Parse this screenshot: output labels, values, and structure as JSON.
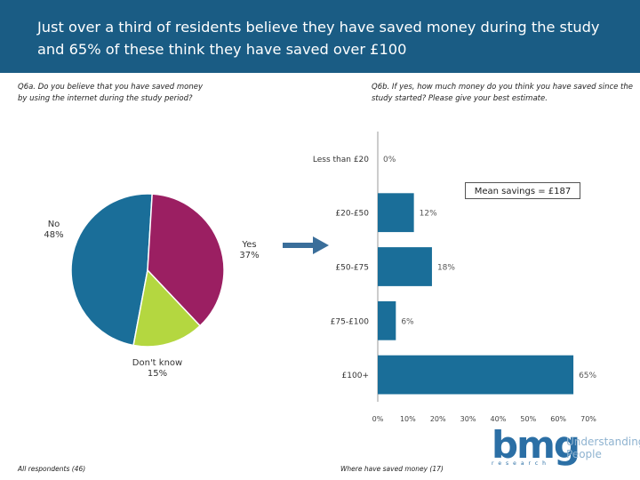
{
  "header": {
    "title": "Just over a third of residents believe they have saved money during the study and 65% of these think they have saved over £100"
  },
  "left": {
    "question": "Q6a. Do you believe that you have saved money by using the internet during the study period?",
    "base": "All respondents (46)"
  },
  "right": {
    "question": "Q6b. If yes, how much money do you think you have saved since the study started? Please give your best estimate.",
    "base": "Where have saved money (17)",
    "mean_note": "Mean savings = £187"
  },
  "colors": {
    "header": "#1a5c84",
    "no": "#1a6e99",
    "yes": "#9b1f62",
    "dont_know": "#b4d740",
    "bar": "#1a6e99"
  },
  "logo": {
    "brand": "bmg",
    "tagline_1": "Understanding",
    "tagline_2": "People",
    "sub": "research"
  },
  "chart_data": [
    {
      "type": "pie",
      "categories": [
        "No",
        "Yes",
        "Don't know"
      ],
      "values": [
        48,
        37,
        15
      ],
      "data_labels": [
        "48%",
        "37%",
        "15%"
      ]
    },
    {
      "type": "bar",
      "orientation": "horizontal",
      "categories": [
        "Less than £20",
        "£20-£50",
        "£50-£75",
        "£75-£100",
        "£100+"
      ],
      "values": [
        0,
        12,
        18,
        6,
        65
      ],
      "data_labels": [
        "0%",
        "12%",
        "18%",
        "6%",
        "65%"
      ],
      "xlim": [
        0,
        70
      ],
      "x_ticks": [
        "0%",
        "10%",
        "20%",
        "30%",
        "40%",
        "50%",
        "60%",
        "70%"
      ],
      "grid": false
    }
  ]
}
